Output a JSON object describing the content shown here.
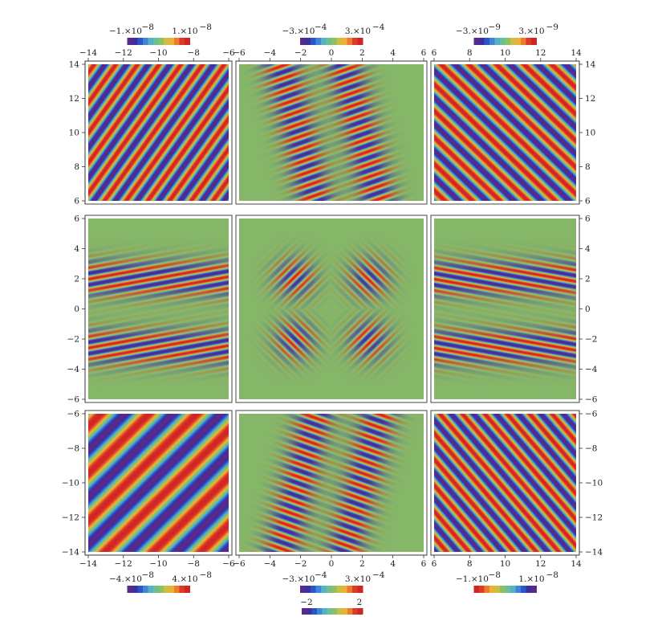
{
  "colorbar_colors": [
    "#5a2a8a",
    "#3f2ea0",
    "#2c55c8",
    "#3f86d8",
    "#55b0c8",
    "#6cbf90",
    "#8cc063",
    "#c9c043",
    "#ecb037",
    "#ec7b2e",
    "#df3a26",
    "#cf2525"
  ],
  "background_color": "#86b768",
  "chart_data": [
    {
      "type": "heatmap",
      "panel": "top-left",
      "x_range": [
        -15,
        -6
      ],
      "y_range": [
        6,
        15
      ],
      "pattern": "plane-wave",
      "angle_deg": 35,
      "wavelength": 1.15,
      "amplitude": 1e-08,
      "colorbar": {
        "labels": [
          "−1.×10",
          "−8",
          "1.×10",
          "−8"
        ],
        "reversed": false
      },
      "x_ticks": [
        "−14",
        "−12",
        "−10",
        "−8",
        "−6"
      ],
      "y_ticks": [
        "6",
        "8",
        "10",
        "12",
        "14"
      ]
    },
    {
      "type": "heatmap",
      "panel": "top-center",
      "x_range": [
        -6,
        6
      ],
      "y_range": [
        6,
        15
      ],
      "pattern": "bands",
      "angle_deg": -25,
      "wavelength": 0.85,
      "amplitude": 0.0003,
      "colorbar": {
        "labels": [
          "−3.×10",
          "−4",
          "3.×10",
          "−4"
        ],
        "reversed": false
      },
      "x_ticks": [
        "−6",
        "−4",
        "−2",
        "0",
        "2",
        "4",
        "6"
      ]
    },
    {
      "type": "heatmap",
      "panel": "top-right",
      "x_range": [
        6,
        15
      ],
      "y_range": [
        6,
        15
      ],
      "pattern": "plane-wave",
      "angle_deg": -45,
      "wavelength": 1.25,
      "amplitude": 3e-09,
      "colorbar": {
        "labels": [
          "−3.×10",
          "−9",
          "3.×10",
          "−9"
        ],
        "reversed": false
      },
      "x_ticks": [
        "6",
        "8",
        "10",
        "12",
        "14"
      ],
      "y_ticks": [
        "6",
        "8",
        "10",
        "12",
        "14"
      ]
    },
    {
      "type": "heatmap",
      "panel": "middle-left",
      "x_range": [
        -15,
        -6
      ],
      "y_range": [
        -6,
        6
      ],
      "pattern": "horizontal-bands",
      "angle_deg": 8,
      "wavelength": 0.75,
      "amplitude": 1e-08,
      "y_ticks": [
        "−6",
        "−4",
        "−2",
        "0",
        "2",
        "4",
        "6"
      ]
    },
    {
      "type": "heatmap",
      "panel": "middle-center",
      "x_range": [
        -6,
        6
      ],
      "y_range": [
        -6,
        6
      ],
      "pattern": "four-lobes",
      "angle_deg": 45,
      "wavelength": 0.7,
      "amplitude": 2
    },
    {
      "type": "heatmap",
      "panel": "middle-right",
      "x_range": [
        6,
        15
      ],
      "y_range": [
        -6,
        6
      ],
      "pattern": "horizontal-bands",
      "angle_deg": -8,
      "wavelength": 0.75,
      "amplitude": 1e-08,
      "y_ticks": [
        "−6",
        "−4",
        "−2",
        "0",
        "2",
        "4",
        "6"
      ]
    },
    {
      "type": "heatmap",
      "panel": "bottom-left",
      "x_range": [
        -15,
        -6
      ],
      "y_range": [
        -15,
        -6
      ],
      "pattern": "plane-wave",
      "angle_deg": 45,
      "wavelength": 2.2,
      "amplitude": 4e-08,
      "colorbar": {
        "labels": [
          "−4.×10",
          "−8",
          "4.×10",
          "−8"
        ],
        "reversed": false
      },
      "x_ticks": [
        "−14",
        "−12",
        "−10",
        "−8",
        "−6"
      ],
      "y_ticks": [
        "−14",
        "−12",
        "−10",
        "−8",
        "−6"
      ]
    },
    {
      "type": "heatmap",
      "panel": "bottom-center",
      "x_range": [
        -6,
        6
      ],
      "y_range": [
        -15,
        -6
      ],
      "pattern": "bands",
      "angle_deg": 25,
      "wavelength": 0.85,
      "amplitude": 0.0003,
      "colorbar": {
        "labels": [
          "−3.×10",
          "−4",
          "3.×10",
          "−4"
        ],
        "reversed": false
      },
      "x_ticks": [
        "−6",
        "−4",
        "−2",
        "0",
        "2",
        "4",
        "6"
      ]
    },
    {
      "type": "heatmap",
      "panel": "bottom-right",
      "x_range": [
        6,
        15
      ],
      "y_range": [
        -15,
        -6
      ],
      "pattern": "plane-wave",
      "angle_deg": -40,
      "wavelength": 1.1,
      "amplitude": 1e-08,
      "colorbar": {
        "labels": [
          "−1.×10",
          "−8",
          "1.×10",
          "−8"
        ],
        "reversed": true
      },
      "x_ticks": [
        "6",
        "8",
        "10",
        "12",
        "14"
      ],
      "y_ticks": [
        "−14",
        "−12",
        "−10",
        "−8",
        "−6"
      ]
    }
  ],
  "extra_colorbar": {
    "labels": [
      "−2",
      "2"
    ]
  }
}
